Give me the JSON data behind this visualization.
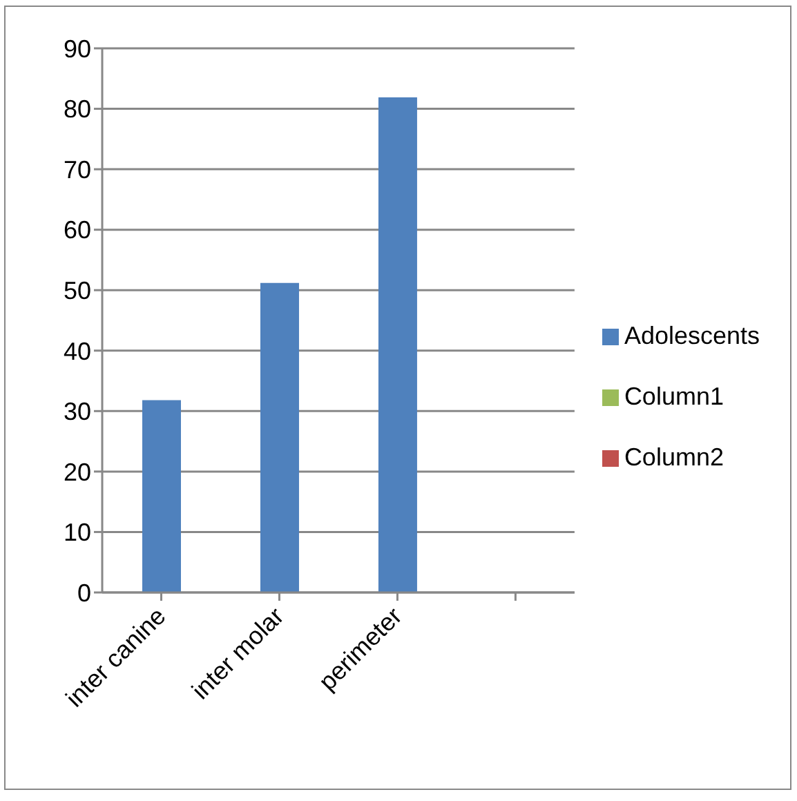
{
  "chart_data": {
    "type": "bar",
    "categories": [
      "inter canine",
      "inter molar",
      "perimeter",
      null
    ],
    "series": [
      {
        "name": "Column1",
        "color": "#9bbb59",
        "values": [
          null,
          null,
          null,
          null
        ]
      },
      {
        "name": "Column2",
        "color": "#c0504d",
        "values": [
          null,
          null,
          null,
          null
        ]
      },
      {
        "name": "Adolescents",
        "color": "#4f81bd",
        "values": [
          31.8,
          51.2,
          81.9,
          null
        ]
      }
    ],
    "ylim": [
      0,
      90
    ],
    "yticks": [
      0,
      10,
      20,
      30,
      40,
      50,
      60,
      70,
      80,
      90
    ],
    "grid": "y",
    "legend": "right"
  }
}
